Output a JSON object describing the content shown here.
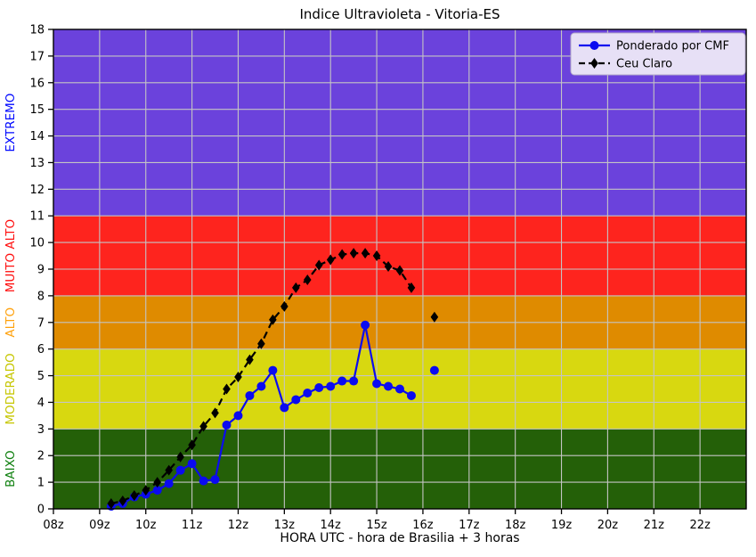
{
  "title": "Indice Ultravioleta - Vitoria-ES",
  "chart_data": {
    "type": "line",
    "title": "Indice Ultravioleta - Vitoria-ES",
    "xlabel": "HORA UTC - hora de Brasilia + 3 horas",
    "ylabel": "",
    "xlim": [
      8,
      23
    ],
    "ylim": [
      0,
      18
    ],
    "grid": true,
    "grid_color": "#c4c4c4",
    "x_tick_values": [
      8,
      9,
      10,
      11,
      12,
      13,
      14,
      15,
      16,
      17,
      18,
      19,
      20,
      21,
      22
    ],
    "x_tick_labels": [
      "08z",
      "09z",
      "10z",
      "11z",
      "12z",
      "13z",
      "14z",
      "15z",
      "16z",
      "17z",
      "18z",
      "19z",
      "20z",
      "21z",
      "22z"
    ],
    "y_tick_values": [
      0,
      1,
      2,
      3,
      4,
      5,
      6,
      7,
      8,
      9,
      10,
      11,
      12,
      13,
      14,
      15,
      16,
      17,
      18
    ],
    "bands": [
      {
        "label": "BAIXO",
        "from": 0,
        "to": 3,
        "color": "#246008",
        "label_color": "#108010"
      },
      {
        "label": "MODERADO",
        "from": 3,
        "to": 6,
        "color": "#d8d810",
        "label_color": "#c6c600"
      },
      {
        "label": "ALTO",
        "from": 6,
        "to": 8,
        "color": "#df8b00",
        "label_color": "#ffa10c"
      },
      {
        "label": "MUITO ALTO",
        "from": 8,
        "to": 11,
        "color": "#fe241e",
        "label_color": "#ff0f0f"
      },
      {
        "label": "EXTREMO",
        "from": 11,
        "to": 18,
        "color": "#6b42dc",
        "label_color": "#0008ff"
      }
    ],
    "legend_position": "top-right",
    "series": [
      {
        "name": "Ponderado por CMF",
        "color": "#0b0bf0",
        "line": "solid",
        "marker": "circle",
        "x": [
          9.25,
          9.5,
          9.75,
          10,
          10.25,
          10.5,
          10.75,
          11,
          11.25,
          11.5,
          11.75,
          12,
          12.25,
          12.5,
          12.75,
          13,
          13.25,
          13.5,
          13.75,
          14,
          14.25,
          14.5,
          14.75,
          15,
          15.25,
          15.5,
          15.75,
          16.25
        ],
        "y": [
          0.1,
          0.2,
          0.45,
          0.55,
          0.7,
          0.95,
          1.45,
          1.7,
          1.05,
          1.1,
          3.15,
          3.5,
          4.25,
          4.6,
          5.2,
          3.8,
          4.1,
          4.35,
          4.55,
          4.6,
          4.8,
          4.8,
          6.9,
          4.7,
          4.6,
          4.5,
          4.25,
          5.2
        ]
      },
      {
        "name": "Ceu Claro",
        "color": "#000000",
        "line": "dashed",
        "marker": "diamond",
        "x": [
          9.25,
          9.5,
          9.75,
          10,
          10.25,
          10.5,
          10.75,
          11,
          11.25,
          11.5,
          11.75,
          12,
          12.25,
          12.5,
          12.75,
          13,
          13.25,
          13.5,
          13.75,
          14,
          14.25,
          14.5,
          14.75,
          15,
          15.25,
          15.5,
          15.75,
          16.25
        ],
        "y": [
          0.2,
          0.3,
          0.5,
          0.7,
          1.0,
          1.45,
          1.95,
          2.4,
          3.1,
          3.6,
          4.5,
          4.95,
          5.6,
          6.2,
          7.1,
          7.6,
          8.3,
          8.6,
          9.15,
          9.35,
          9.55,
          9.6,
          9.6,
          9.5,
          9.1,
          8.95,
          8.3,
          7.2
        ]
      }
    ],
    "legend": {
      "background": "#e7e0f6",
      "border": "#b3aac9"
    }
  }
}
